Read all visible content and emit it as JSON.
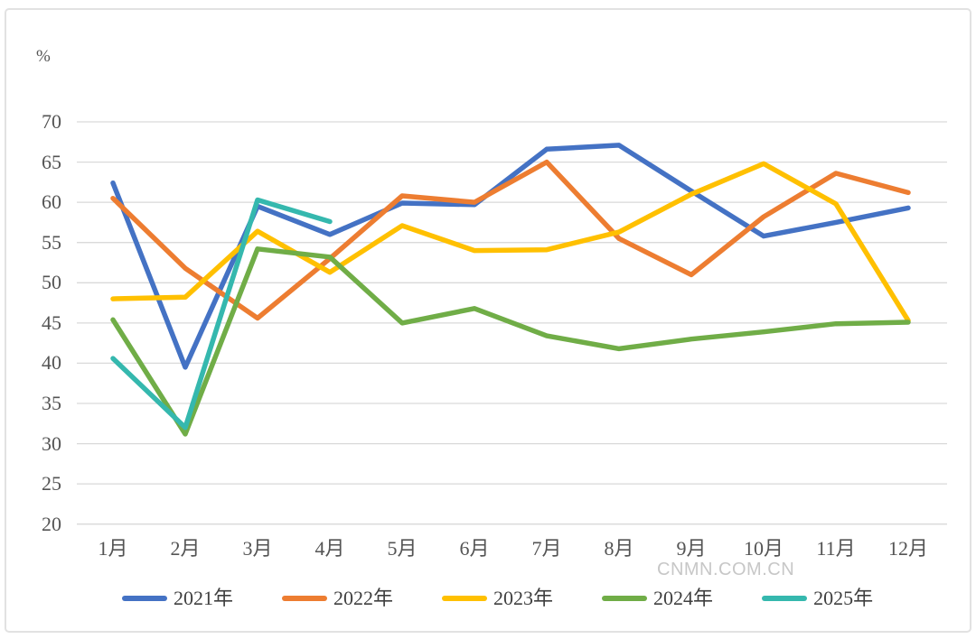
{
  "page": {
    "watermark": "CNMN.COM.CN",
    "colors": {
      "background": "#ffffff",
      "panel_border": "#e2e2e2",
      "gridline": "#d9d9d9",
      "tick_label": "#545454",
      "watermark": "#c7c7c7"
    }
  },
  "chart_data": {
    "type": "line",
    "title": "",
    "unit_label": "%",
    "xlabel": "",
    "ylabel": "%",
    "ylim": [
      20,
      70
    ],
    "y_ticks": [
      70,
      65,
      60,
      55,
      50,
      45,
      40,
      35,
      30,
      25,
      20
    ],
    "grid": "horizontal",
    "legend_position": "bottom",
    "categories": [
      "1月",
      "2月",
      "3月",
      "4月",
      "5月",
      "6月",
      "7月",
      "8月",
      "9月",
      "10月",
      "11月",
      "12月"
    ],
    "series": [
      {
        "name": "2021年",
        "color": "#4472C4",
        "values": [
          62.4,
          39.5,
          59.5,
          56.0,
          59.9,
          59.7,
          66.6,
          67.1,
          61.4,
          55.8,
          57.5,
          59.3
        ]
      },
      {
        "name": "2022年",
        "color": "#ED7D31",
        "values": [
          60.5,
          51.8,
          45.6,
          53.0,
          60.8,
          60.0,
          65.0,
          55.5,
          51.0,
          58.2,
          63.6,
          61.2
        ]
      },
      {
        "name": "2023年",
        "color": "#FFC000",
        "values": [
          48.0,
          48.2,
          56.4,
          51.3,
          57.1,
          54.0,
          54.1,
          56.3,
          61.0,
          64.8,
          59.8,
          45.3
        ]
      },
      {
        "name": "2024年",
        "color": "#70AD47",
        "values": [
          45.4,
          31.2,
          54.2,
          53.2,
          45.0,
          46.8,
          43.4,
          41.8,
          43.0,
          43.9,
          44.9,
          45.1
        ]
      },
      {
        "name": "2025年",
        "color": "#35B8AE",
        "values": [
          40.6,
          32.0,
          60.3,
          57.6,
          null,
          null,
          null,
          null,
          null,
          null,
          null,
          null
        ]
      }
    ]
  }
}
